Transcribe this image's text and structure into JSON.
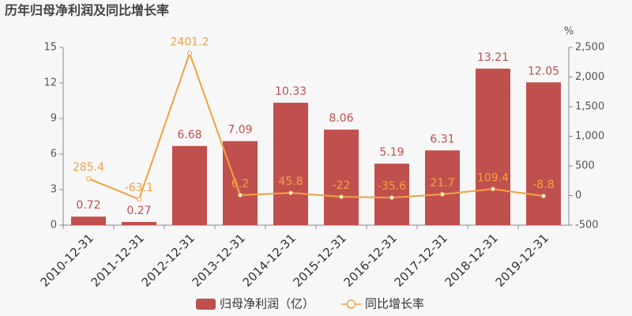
{
  "chart_data": {
    "type": "combo",
    "title": "历年归母净利润及同比增长率",
    "categories": [
      "2010-12-31",
      "2011-12-31",
      "2012-12-31",
      "2013-12-31",
      "2014-12-31",
      "2015-12-31",
      "2016-12-31",
      "2017-12-31",
      "2018-12-31",
      "2019-12-31"
    ],
    "series": [
      {
        "name": "归母净利润（亿）",
        "type": "bar",
        "color": "#c0504d",
        "values": [
          0.72,
          0.27,
          6.68,
          7.09,
          10.33,
          8.06,
          5.19,
          6.31,
          13.21,
          12.05
        ]
      },
      {
        "name": "同比增长率",
        "type": "line",
        "axis": "y2",
        "color": "#f2a043",
        "values": [
          285.4,
          -63.1,
          2401.2,
          6.2,
          45.8,
          -22,
          -35.6,
          21.7,
          109.4,
          -8.8
        ]
      }
    ],
    "ylim": [
      0,
      15
    ],
    "yticks": [
      0,
      3,
      6,
      9,
      12,
      15
    ],
    "y2label": "%",
    "y2lim": [
      -500,
      2500
    ],
    "y2ticks": [
      -500,
      0,
      500,
      {
        "value": 1000,
        "label": "1,000"
      },
      {
        "value": 1500,
        "label": "1,500"
      },
      {
        "value": 2000,
        "label": "2,000"
      },
      {
        "value": 2500,
        "label": "2,500"
      }
    ],
    "grid": false
  }
}
